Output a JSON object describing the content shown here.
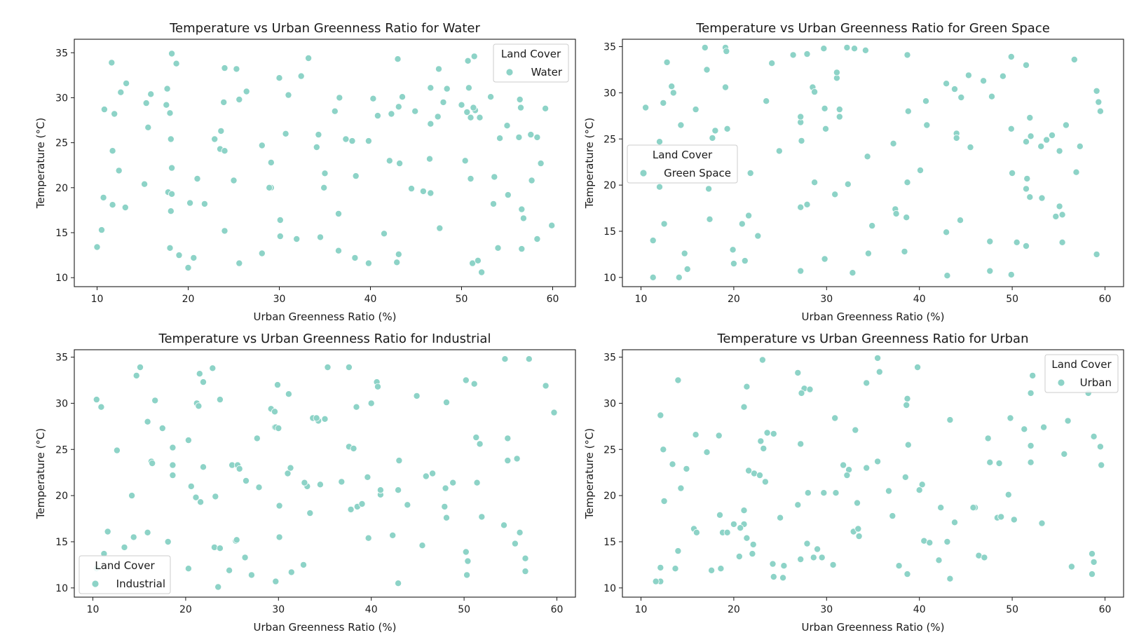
{
  "figure": {
    "marker_color": "#8dd3c7",
    "marker_edge_color": "#ffffff"
  },
  "chart_data": [
    {
      "type": "scatter",
      "title": "Temperature vs Urban Greenness Ratio for Water",
      "xlabel": "Urban Greenness Ratio (%)",
      "ylabel": "Temperature (°C)",
      "xlim": [
        7.5,
        62.5
      ],
      "ylim": [
        9,
        36.5
      ],
      "xticks": [
        10,
        20,
        30,
        40,
        50,
        60
      ],
      "yticks": [
        10,
        15,
        20,
        25,
        30,
        35
      ],
      "legend": {
        "title": "Land Cover",
        "label": "Water",
        "position": "upper right"
      },
      "x": [
        11.6,
        18.2,
        18.7,
        24.0,
        25.3,
        33.2,
        43.0,
        47.5,
        50.7,
        51.4,
        10.8,
        11.9,
        12.6,
        13.2,
        15.9,
        15.4,
        17.7,
        17.6,
        18.0,
        23.9,
        25.6,
        26.4,
        30.0,
        31.0,
        36.6,
        40.3,
        43.5,
        46.6,
        48.4,
        50.0,
        50.8,
        51.0,
        51.5,
        51.3,
        52.0,
        53.2,
        56.4,
        56.5,
        59.2,
        15.6,
        18.1,
        28.1,
        11.7,
        22.9,
        23.5,
        24.0,
        34.3,
        34.1,
        38.0,
        37.3,
        39.8,
        56.3,
        57.6,
        58.3,
        54.2,
        55.0,
        12.4,
        18.2,
        29.1,
        35.0,
        42.1,
        43.2,
        46.5,
        50.4,
        51.0,
        53.6,
        58.7,
        21.0,
        25.0,
        38.4,
        57.7,
        10.7,
        11.7,
        13.1,
        15.2,
        17.8,
        18.2,
        20.2,
        21.8,
        29.1,
        34.9,
        44.5,
        45.8,
        46.6,
        53.5,
        55.1,
        56.6,
        10.5,
        18.1,
        24.0,
        30.1,
        36.5,
        41.5,
        47.6,
        56.8,
        59.9,
        10.0,
        18.0,
        19.0,
        20.0,
        20.6,
        25.6,
        28.1,
        30.1,
        31.9,
        34.5,
        36.5,
        38.3,
        39.8,
        42.9,
        43.1,
        51.2,
        51.8,
        52.2,
        54.0,
        56.6,
        58.3,
        23.6,
        32.4,
        30.7,
        44.9,
        46.6,
        47.4,
        50.6,
        40.8,
        43.1,
        42.3,
        28.9,
        48.0,
        36.1
      ],
      "y": [
        33.9,
        34.9,
        33.8,
        33.3,
        33.2,
        34.4,
        34.3,
        33.2,
        34.1,
        34.6,
        28.7,
        28.2,
        30.6,
        31.6,
        30.4,
        29.4,
        31.0,
        29.2,
        28.3,
        29.5,
        29.8,
        30.7,
        32.2,
        30.3,
        30.0,
        29.9,
        30.1,
        31.1,
        31.0,
        29.2,
        31.1,
        27.8,
        28.6,
        28.9,
        27.8,
        30.1,
        29.8,
        28.9,
        28.8,
        26.7,
        25.4,
        24.7,
        24.1,
        25.4,
        24.3,
        24.1,
        25.9,
        24.5,
        25.2,
        25.4,
        25.2,
        25.6,
        25.9,
        25.6,
        25.5,
        26.9,
        21.9,
        22.2,
        22.8,
        21.6,
        23.0,
        22.7,
        23.2,
        23.0,
        21.0,
        21.2,
        22.7,
        21.0,
        20.8,
        21.3,
        20.8,
        18.9,
        18.1,
        17.8,
        20.4,
        19.5,
        19.3,
        18.3,
        18.2,
        20.0,
        20.0,
        19.9,
        19.6,
        19.4,
        18.2,
        19.2,
        17.6,
        15.3,
        17.4,
        15.2,
        16.4,
        17.1,
        14.9,
        15.5,
        16.6,
        15.8,
        13.4,
        13.3,
        12.5,
        11.1,
        12.2,
        11.6,
        12.7,
        14.6,
        14.3,
        14.5,
        13.0,
        12.2,
        11.6,
        11.7,
        12.6,
        11.6,
        11.9,
        10.6,
        13.3,
        13.2,
        14.3,
        26.3,
        32.4,
        26.0,
        28.5,
        27.1,
        27.9,
        28.4,
        28.0,
        29.0,
        28.2,
        20.0,
        29.5,
        28.5
      ]
    },
    {
      "type": "scatter",
      "title": "Temperature vs Urban Greenness Ratio for Green Space",
      "xlabel": "Urban Greenness Ratio (%)",
      "ylabel": "Temperature (°C)",
      "xlim": [
        8,
        62
      ],
      "ylim": [
        9,
        35.8
      ],
      "xticks": [
        10,
        20,
        30,
        40,
        50,
        60
      ],
      "yticks": [
        10,
        15,
        20,
        25,
        30,
        35
      ],
      "legend": {
        "title": "Land Cover",
        "label": "Green Space",
        "position": "center left"
      },
      "x": [
        16.9,
        19.1,
        19.2,
        26.4,
        27.9,
        29.7,
        32.2,
        33.0,
        34.2,
        38.7,
        12.8,
        17.1,
        24.1,
        49.9,
        51.5,
        56.7,
        10.5,
        12.4,
        13.3,
        13.5,
        15.9,
        19.1,
        23.5,
        28.5,
        28.7,
        29.8,
        31.1,
        31.4,
        31.4,
        38.8,
        40.7,
        42.9,
        43.8,
        44.5,
        45.3,
        46.9,
        47.8,
        49.0,
        59.3,
        59.1,
        59.5,
        12.0,
        14.3,
        17.7,
        18.0,
        19.3,
        24.9,
        27.2,
        27.2,
        27.3,
        29.9,
        31.4,
        34.4,
        37.2,
        40.8,
        44.0,
        44.0,
        45.5,
        49.9,
        51.5,
        51.9,
        52.0,
        53.1,
        53.7,
        54.3,
        55.1,
        55.8,
        57.3,
        56.9,
        12.0,
        17.3,
        21.8,
        28.7,
        30.9,
        32.3,
        38.7,
        40.1,
        50.0,
        51.5,
        51.6,
        51.9,
        53.2,
        55.1,
        12.5,
        17.4,
        20.9,
        21.6,
        22.6,
        27.2,
        27.9,
        34.9,
        37.4,
        38.6,
        44.4,
        54.7,
        55.4,
        11.3,
        14.7,
        19.9,
        21.2,
        29.8,
        34.5,
        38.4,
        42.9,
        47.6,
        50.5,
        51.5,
        55.4,
        59.1,
        11.3,
        14.1,
        15.0,
        20.0,
        27.2,
        32.8,
        43.0,
        47.6,
        49.9,
        31.1,
        37.5
      ],
      "y": [
        34.9,
        34.9,
        34.5,
        34.1,
        34.2,
        34.8,
        34.9,
        34.8,
        34.6,
        34.1,
        33.3,
        32.5,
        33.2,
        33.9,
        33.0,
        33.6,
        28.4,
        28.9,
        30.7,
        30.0,
        28.2,
        30.6,
        29.1,
        30.6,
        30.1,
        28.3,
        31.6,
        28.2,
        27.4,
        28.0,
        29.1,
        31.0,
        30.4,
        29.5,
        31.9,
        31.3,
        29.6,
        31.8,
        29.0,
        30.2,
        28.0,
        24.7,
        26.5,
        25.1,
        25.9,
        26.1,
        23.7,
        26.8,
        27.4,
        24.8,
        26.1,
        27.4,
        23.1,
        24.5,
        26.5,
        25.6,
        25.1,
        24.1,
        26.1,
        24.7,
        27.3,
        25.3,
        24.2,
        24.9,
        25.4,
        23.7,
        26.5,
        24.2,
        21.4,
        19.8,
        19.6,
        21.3,
        20.3,
        19.0,
        20.1,
        20.3,
        21.6,
        21.3,
        19.6,
        20.7,
        18.7,
        18.6,
        17.7,
        15.8,
        16.3,
        15.8,
        16.7,
        14.5,
        17.6,
        17.9,
        15.6,
        17.4,
        16.5,
        16.2,
        16.6,
        16.8,
        14.0,
        12.6,
        13.0,
        11.8,
        12.0,
        12.6,
        12.8,
        14.9,
        13.9,
        13.8,
        13.4,
        13.8,
        12.5,
        10.0,
        10.0,
        10.9,
        11.5,
        10.7,
        10.5,
        10.2,
        10.7,
        10.3,
        32.2,
        16.9
      ]
    },
    {
      "type": "scatter",
      "title": "Temperature vs Urban Greenness Ratio for Industrial",
      "xlabel": "Urban Greenness Ratio (%)",
      "ylabel": "Temperature (°C)",
      "xlim": [
        8,
        62
      ],
      "ylim": [
        9,
        35.8
      ],
      "xticks": [
        10,
        20,
        30,
        40,
        50,
        60
      ],
      "yticks": [
        10,
        15,
        20,
        25,
        30,
        35
      ],
      "legend": {
        "title": "Land Cover",
        "label": "Industrial",
        "position": "lower left"
      },
      "x": [
        15.1,
        21.5,
        22.9,
        35.3,
        37.6,
        54.4,
        57.0,
        14.7,
        10.4,
        10.9,
        16.7,
        21.2,
        21.4,
        21.9,
        23.7,
        29.9,
        29.2,
        29.6,
        31.1,
        35.0,
        34.3,
        29.6,
        40.0,
        40.6,
        40.7,
        41.0,
        44.9,
        48.1,
        50.2,
        51.1,
        58.8,
        59.7,
        12.6,
        15.9,
        17.5,
        18.6,
        29.7,
        30.0,
        31.0,
        33.7,
        34.1,
        34.5,
        37.6,
        38.1,
        38.4,
        51.3,
        51.7,
        54.7,
        54.7,
        55.7,
        20.3,
        16.3,
        16.4,
        18.6,
        21.9,
        25.0,
        25.6,
        25.8,
        26.5,
        33.1,
        32.8,
        39.6,
        45.9,
        46.6,
        48.0,
        41.0,
        42.9,
        43.9,
        47.9,
        48.1,
        48.8,
        51.4,
        51.9,
        20.6,
        21.1,
        21.6,
        23.2,
        27.9,
        30.1,
        31.3,
        33.4,
        36.8,
        37.8,
        38.5,
        11.6,
        14.4,
        15.9,
        18.1,
        18.6,
        23.1,
        25.4,
        26.4,
        30.1,
        39.7,
        42.3,
        45.5,
        50.2,
        50.4,
        54.3,
        55.5,
        56.0,
        56.6,
        11.2,
        13.4,
        20.3,
        23.7,
        24.7,
        27.1,
        29.7,
        31.4,
        32.7,
        42.9,
        50.3,
        56.6,
        10.4,
        14.2,
        23.5,
        25.5,
        27.7,
        39.0,
        43.0
      ],
      "y": [
        33.9,
        33.2,
        33.8,
        33.9,
        33.9,
        34.8,
        34.8,
        33.0,
        30.4,
        29.6,
        30.3,
        30.0,
        29.7,
        32.3,
        30.4,
        32.0,
        29.4,
        29.1,
        31.0,
        28.3,
        28.1,
        27.4,
        30.0,
        32.3,
        31.8,
        20.1,
        30.8,
        30.1,
        32.5,
        32.1,
        31.9,
        29.0,
        24.9,
        28.0,
        27.3,
        25.2,
        27.4,
        27.3,
        22.4,
        28.4,
        28.4,
        21.2,
        25.3,
        25.1,
        29.6,
        26.3,
        25.6,
        26.2,
        23.8,
        24.0,
        26.0,
        23.7,
        23.5,
        23.3,
        23.1,
        23.3,
        23.3,
        22.9,
        21.6,
        21.0,
        21.4,
        22.0,
        22.1,
        22.4,
        20.8,
        20.6,
        20.6,
        19.0,
        18.8,
        17.6,
        21.4,
        21.4,
        17.7,
        21.0,
        19.8,
        19.3,
        19.9,
        20.9,
        18.9,
        23.0,
        18.1,
        21.5,
        18.5,
        18.8,
        16.1,
        15.5,
        16.0,
        15.0,
        22.2,
        14.4,
        15.1,
        13.3,
        15.5,
        15.4,
        15.7,
        14.6,
        13.9,
        12.9,
        16.8,
        14.8,
        16.0,
        13.2,
        13.7,
        14.4,
        12.1,
        14.3,
        11.9,
        11.4,
        10.7,
        11.7,
        12.5,
        10.5,
        11.4,
        11.8,
        12.1,
        20.0,
        10.1,
        15.2,
        26.2,
        19.1,
        23.8
      ]
    },
    {
      "type": "scatter",
      "title": "Temperature vs Urban Greenness Ratio for Urban",
      "xlabel": "Urban Greenness Ratio (%)",
      "ylabel": "Temperature (°C)",
      "xlim": [
        8,
        62
      ],
      "ylim": [
        9,
        35.8
      ],
      "xticks": [
        10,
        20,
        30,
        40,
        50,
        60
      ],
      "yticks": [
        10,
        15,
        20,
        25,
        30,
        35
      ],
      "legend": {
        "title": "Land Cover",
        "label": "Urban",
        "position": "upper right"
      },
      "x": [
        23.1,
        35.5,
        35.7,
        39.8,
        26.9,
        27.6,
        14.0,
        21.4,
        21.1,
        27.3,
        28.2,
        34.3,
        38.7,
        38.6,
        52.2,
        52.0,
        58.2,
        12.1,
        22.9,
        23.6,
        23.2,
        27.2,
        30.9,
        33.1,
        38.8,
        49.8,
        51.3,
        52.0,
        53.4,
        56.0,
        58.8,
        59.5,
        15.9,
        18.4,
        24.3,
        43.3,
        47.4,
        52.0,
        55.6,
        14.3,
        14.9,
        17.1,
        21.1,
        22.2,
        22.8,
        23.4,
        25.0,
        26.9,
        31.8,
        32.4,
        32.2,
        34.3,
        36.7,
        38.5,
        40.3,
        42.3,
        46.0,
        48.4,
        28.0,
        29.7,
        12.1,
        12.4,
        12.5,
        13.4,
        18.8,
        20.0,
        21.1,
        22.1,
        24.3,
        27.2,
        33.3,
        35.5,
        37.1,
        47.6,
        48.6,
        49.6,
        53.2,
        59.6,
        12.1,
        15.7,
        19.3,
        20.6,
        21.4,
        25.4,
        29.0,
        29.5,
        33.5,
        40.5,
        41.1,
        43.0,
        43.8,
        46.4,
        50.2,
        58.8,
        14.0,
        17.6,
        24.2,
        27.9,
        30.7,
        31.0,
        37.8,
        38.7,
        45.8,
        47.0,
        48.8,
        56.4,
        58.6,
        11.6,
        13.7,
        20.7,
        21.6,
        22.0,
        25.3,
        28.6,
        32.9,
        33.4,
        40.0,
        42.1,
        43.3,
        16.0,
        18.6,
        18.5,
        58.6
      ],
      "y": [
        34.7,
        34.9,
        33.4,
        33.9,
        33.3,
        31.6,
        32.5,
        31.8,
        29.6,
        31.1,
        31.5,
        32.2,
        30.5,
        29.8,
        33.0,
        31.1,
        31.1,
        28.7,
        25.9,
        26.8,
        25.1,
        25.6,
        28.4,
        27.1,
        25.5,
        28.4,
        27.2,
        25.4,
        27.4,
        28.1,
        26.4,
        25.3,
        26.6,
        26.5,
        26.7,
        28.2,
        26.2,
        23.6,
        24.5,
        20.8,
        22.9,
        24.7,
        18.4,
        22.4,
        22.2,
        21.5,
        17.6,
        19.0,
        23.3,
        22.8,
        22.2,
        23.0,
        20.5,
        22.0,
        21.2,
        18.7,
        18.7,
        17.6,
        20.3,
        20.3,
        12.2,
        25.0,
        19.4,
        23.4,
        16.0,
        16.9,
        16.9,
        14.7,
        11.2,
        13.1,
        19.2,
        23.7,
        17.8,
        23.6,
        23.5,
        20.1,
        17.0,
        23.3,
        10.7,
        16.4,
        16.0,
        13.4,
        15.4,
        12.4,
        14.2,
        13.3,
        15.6,
        15.1,
        14.9,
        15.0,
        17.1,
        13.5,
        17.4,
        12.8,
        14.0,
        11.9,
        12.6,
        14.8,
        12.5,
        20.3,
        12.4,
        11.5,
        18.7,
        13.3,
        17.7,
        12.3,
        13.7,
        10.7,
        12.1,
        16.5,
        22.7,
        13.7,
        11.1,
        13.3,
        16.1,
        16.4,
        20.6,
        13.0,
        11.0,
        16.0,
        12.1,
        17.9,
        11.5
      ]
    }
  ]
}
